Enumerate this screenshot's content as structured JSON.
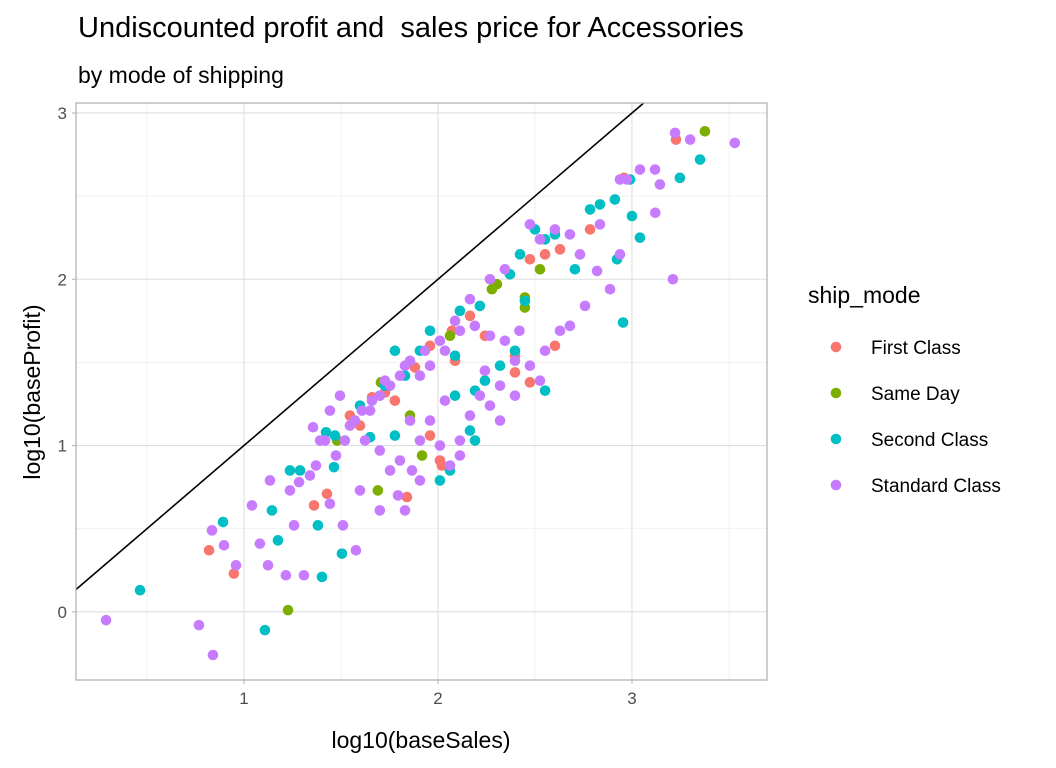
{
  "chart_data": {
    "type": "scatter",
    "title": "Undiscounted profit and  sales price for Accessories",
    "subtitle": "by mode of shipping",
    "xlabel": "log10(baseSales)",
    "ylabel": "log10(baseProfit)",
    "xlim": [
      0.134,
      3.696
    ],
    "ylim": [
      -0.41,
      3.06
    ],
    "xticks": [
      1,
      2,
      3
    ],
    "yticks": [
      0,
      1,
      2,
      3
    ],
    "grid": true,
    "reference_line": {
      "type": "identity",
      "slope": 1,
      "intercept": 0,
      "color": "#000000"
    },
    "legend": {
      "title": "ship_mode",
      "position": "right"
    },
    "series": [
      {
        "name": "First Class",
        "color": "#F8766D",
        "points": [
          [
            0.82,
            0.37
          ],
          [
            0.948,
            0.23
          ],
          [
            1.361,
            0.64
          ],
          [
            1.428,
            0.71
          ],
          [
            1.84,
            0.69
          ],
          [
            1.546,
            1.18
          ],
          [
            1.66,
            1.29
          ],
          [
            1.727,
            1.32
          ],
          [
            1.881,
            1.47
          ],
          [
            1.959,
            1.6
          ],
          [
            2.072,
            1.69
          ],
          [
            2.165,
            1.78
          ],
          [
            2.242,
            1.66
          ],
          [
            2.01,
            0.91
          ],
          [
            2.02,
            0.88
          ],
          [
            1.959,
            1.06
          ],
          [
            2.397,
            1.54
          ],
          [
            2.397,
            1.44
          ],
          [
            2.474,
            1.38
          ],
          [
            2.603,
            1.6
          ],
          [
            2.474,
            2.12
          ],
          [
            2.552,
            2.15
          ],
          [
            2.629,
            2.18
          ],
          [
            2.784,
            2.3
          ],
          [
            2.959,
            2.61
          ],
          [
            3.227,
            2.84
          ],
          [
            1.598,
            1.12
          ],
          [
            1.778,
            1.27
          ],
          [
            2.088,
            1.51
          ]
        ]
      },
      {
        "name": "Same Day",
        "color": "#7CAE00",
        "points": [
          [
            1.227,
            0.01
          ],
          [
            1.69,
            0.73
          ],
          [
            1.856,
            1.18
          ],
          [
            1.706,
            1.38
          ],
          [
            1.918,
            0.94
          ],
          [
            1.48,
            1.03
          ],
          [
            2.278,
            1.94
          ],
          [
            2.304,
            1.97
          ],
          [
            2.448,
            1.89
          ],
          [
            2.448,
            1.83
          ],
          [
            2.526,
            2.06
          ],
          [
            3.376,
            2.89
          ],
          [
            2.062,
            1.66
          ]
        ]
      },
      {
        "name": "Second Class",
        "color": "#00BFC4",
        "points": [
          [
            0.464,
            0.13
          ],
          [
            0.892,
            0.54
          ],
          [
            1.108,
            -0.11
          ],
          [
            1.144,
            0.61
          ],
          [
            1.175,
            0.43
          ],
          [
            1.237,
            0.85
          ],
          [
            1.289,
            0.85
          ],
          [
            1.402,
            0.21
          ],
          [
            1.381,
            0.52
          ],
          [
            1.505,
            0.35
          ],
          [
            1.464,
            0.87
          ],
          [
            1.65,
            1.05
          ],
          [
            1.778,
            1.06
          ],
          [
            1.469,
            1.06
          ],
          [
            1.423,
            1.08
          ],
          [
            2.01,
            0.79
          ],
          [
            2.062,
            0.85
          ],
          [
            2.165,
            1.09
          ],
          [
            2.191,
            1.03
          ],
          [
            2.088,
            1.3
          ],
          [
            2.191,
            1.33
          ],
          [
            2.242,
            1.39
          ],
          [
            2.32,
            1.48
          ],
          [
            2.552,
            1.33
          ],
          [
            2.397,
            1.57
          ],
          [
            2.448,
            1.87
          ],
          [
            2.552,
            2.24
          ],
          [
            2.706,
            2.06
          ],
          [
            2.784,
            2.42
          ],
          [
            2.835,
            2.45
          ],
          [
            2.912,
            2.48
          ],
          [
            2.99,
            2.6
          ],
          [
            3.351,
            2.72
          ],
          [
            3.247,
            2.61
          ],
          [
            3.0,
            2.38
          ],
          [
            3.041,
            2.25
          ],
          [
            2.954,
            1.74
          ],
          [
            2.923,
            2.12
          ],
          [
            2.113,
            1.81
          ],
          [
            2.216,
            1.84
          ],
          [
            1.959,
            1.69
          ],
          [
            1.83,
            1.42
          ],
          [
            1.727,
            1.36
          ],
          [
            1.598,
            1.24
          ],
          [
            1.778,
            1.57
          ],
          [
            1.907,
            1.57
          ],
          [
            2.088,
            1.54
          ],
          [
            2.371,
            2.03
          ],
          [
            2.423,
            2.15
          ],
          [
            2.5,
            2.3
          ],
          [
            2.603,
            2.27
          ]
        ]
      },
      {
        "name": "Standard Class",
        "color": "#C77CFF",
        "points": [
          [
            0.289,
            -0.05
          ],
          [
            0.768,
            -0.08
          ],
          [
            0.84,
            -0.26
          ],
          [
            0.835,
            0.49
          ],
          [
            0.897,
            0.4
          ],
          [
            0.959,
            0.28
          ],
          [
            1.041,
            0.64
          ],
          [
            1.082,
            0.41
          ],
          [
            1.124,
            0.28
          ],
          [
            1.216,
            0.22
          ],
          [
            1.309,
            0.22
          ],
          [
            1.258,
            0.52
          ],
          [
            1.284,
            0.78
          ],
          [
            1.134,
            0.79
          ],
          [
            1.371,
            0.88
          ],
          [
            1.443,
            0.65
          ],
          [
            1.51,
            0.52
          ],
          [
            1.577,
            0.37
          ],
          [
            1.356,
            1.11
          ],
          [
            1.392,
            1.03
          ],
          [
            1.474,
            0.94
          ],
          [
            1.546,
            1.12
          ],
          [
            1.608,
            1.21
          ],
          [
            1.66,
            1.27
          ],
          [
            1.7,
            0.97
          ],
          [
            1.753,
            0.85
          ],
          [
            1.794,
            0.7
          ],
          [
            1.83,
            0.61
          ],
          [
            1.866,
            0.85
          ],
          [
            1.907,
            1.03
          ],
          [
            1.959,
            1.15
          ],
          [
            2.01,
            1.0
          ],
          [
            2.062,
            0.88
          ],
          [
            2.113,
            1.03
          ],
          [
            2.036,
            1.27
          ],
          [
            2.165,
            1.18
          ],
          [
            2.216,
            1.3
          ],
          [
            2.268,
            1.24
          ],
          [
            2.32,
            1.36
          ],
          [
            2.397,
            1.3
          ],
          [
            2.474,
            1.48
          ],
          [
            2.552,
            1.57
          ],
          [
            2.68,
            1.72
          ],
          [
            2.758,
            1.84
          ],
          [
            2.82,
            2.05
          ],
          [
            2.887,
            1.94
          ],
          [
            2.938,
            2.15
          ],
          [
            2.974,
            2.6
          ],
          [
            3.119,
            2.66
          ],
          [
            3.144,
            2.57
          ],
          [
            3.222,
            2.88
          ],
          [
            3.3,
            2.84
          ],
          [
            3.53,
            2.82
          ],
          [
            3.211,
            2.0
          ],
          [
            3.12,
            2.4
          ],
          [
            2.42,
            1.69
          ],
          [
            2.345,
            1.63
          ],
          [
            2.268,
            1.66
          ],
          [
            2.19,
            1.72
          ],
          [
            2.113,
            1.69
          ],
          [
            2.036,
            1.57
          ],
          [
            1.959,
            1.48
          ],
          [
            1.907,
            1.42
          ],
          [
            1.856,
            1.51
          ],
          [
            1.804,
            1.42
          ],
          [
            1.753,
            1.36
          ],
          [
            1.7,
            1.3
          ],
          [
            1.65,
            1.21
          ],
          [
            1.572,
            1.15
          ],
          [
            1.52,
            1.03
          ],
          [
            1.624,
            1.03
          ],
          [
            1.418,
            1.03
          ],
          [
            1.34,
            0.82
          ],
          [
            1.237,
            0.73
          ],
          [
            1.7,
            0.61
          ],
          [
            1.598,
            0.73
          ],
          [
            1.804,
            0.91
          ],
          [
            1.907,
            0.79
          ],
          [
            2.113,
            0.94
          ],
          [
            2.32,
            1.15
          ],
          [
            2.526,
            1.39
          ],
          [
            2.629,
            1.69
          ],
          [
            2.732,
            2.15
          ],
          [
            2.68,
            2.27
          ],
          [
            2.835,
            2.33
          ],
          [
            2.938,
            2.6
          ],
          [
            3.041,
            2.66
          ],
          [
            2.474,
            2.33
          ],
          [
            2.526,
            2.24
          ],
          [
            2.603,
            2.3
          ],
          [
            2.345,
            2.06
          ],
          [
            2.268,
            2.0
          ],
          [
            2.165,
            1.88
          ],
          [
            2.088,
            1.75
          ],
          [
            2.01,
            1.63
          ],
          [
            1.933,
            1.57
          ],
          [
            1.83,
            1.48
          ],
          [
            1.727,
            1.39
          ],
          [
            1.495,
            1.3
          ],
          [
            1.443,
            1.21
          ],
          [
            1.856,
            1.15
          ],
          [
            2.242,
            1.45
          ],
          [
            2.397,
            1.51
          ]
        ]
      }
    ]
  }
}
